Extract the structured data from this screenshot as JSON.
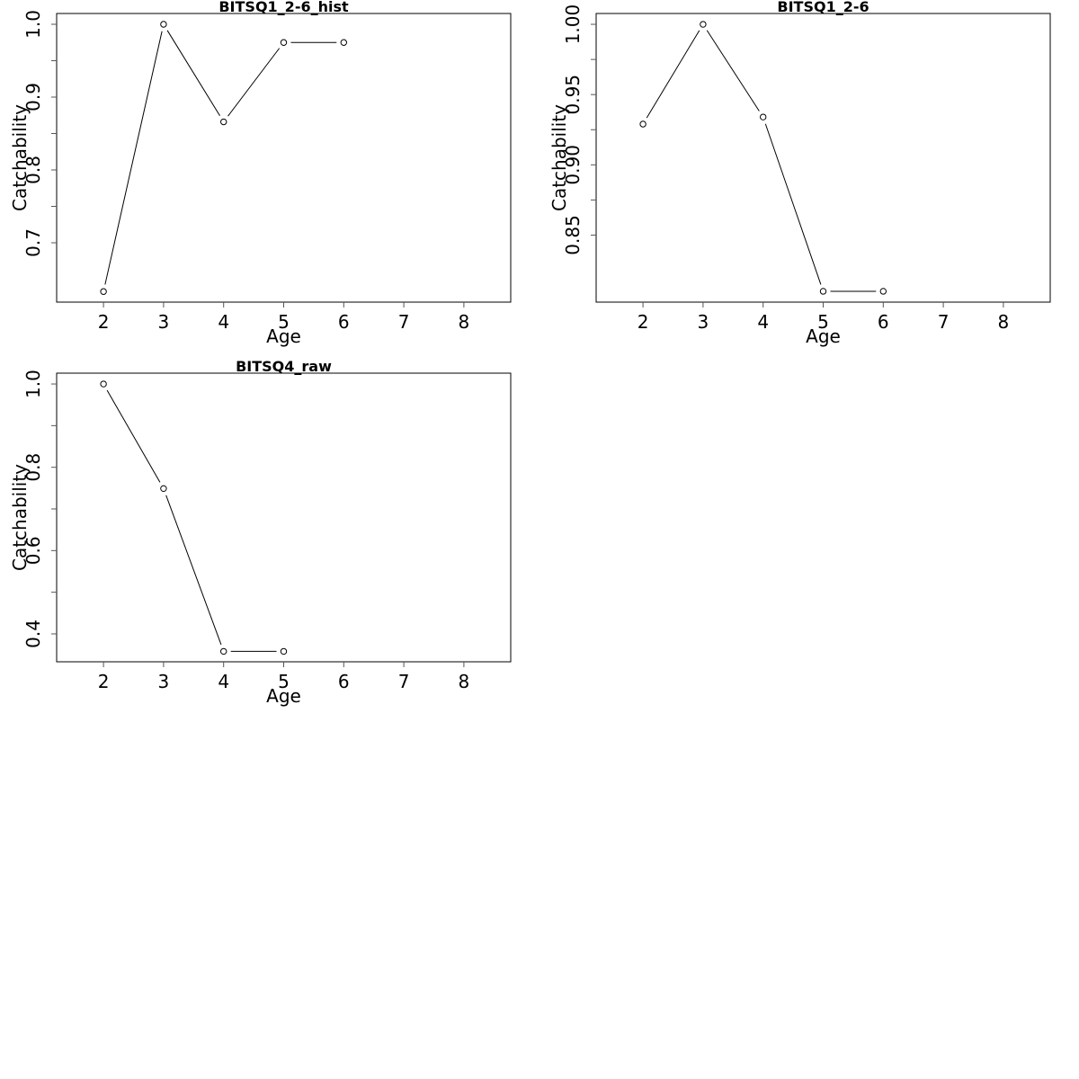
{
  "chart_data": [
    {
      "type": "line",
      "title": "BITSQ1_2-6_hist",
      "xlabel": "Age",
      "ylabel": "Catchability",
      "x_ticks": [
        2,
        3,
        4,
        5,
        6,
        7,
        8
      ],
      "y_ticks": [
        0.7,
        0.8,
        0.9,
        1.0
      ],
      "y_tick_labels": [
        "0.7",
        "0.8",
        "0.9",
        "1.0"
      ],
      "xlim": [
        1.22,
        8.78
      ],
      "ylim": [
        0.6185,
        1.0148
      ],
      "grid": false,
      "x": [
        2,
        3,
        4,
        5,
        6
      ],
      "values": [
        0.633,
        1.0,
        0.866,
        0.975,
        0.975
      ]
    },
    {
      "type": "line",
      "title": "BITSQ1_2-6",
      "xlabel": "Age",
      "ylabel": "Catchability",
      "x_ticks": [
        2,
        3,
        4,
        5,
        6,
        7,
        8
      ],
      "y_ticks": [
        0.85,
        0.9,
        0.95,
        1.0
      ],
      "y_tick_labels": [
        "0.85",
        "0.90",
        "0.95",
        "1.00"
      ],
      "xlim": [
        1.22,
        8.78
      ],
      "ylim": [
        0.8023,
        1.0077
      ],
      "grid": false,
      "x": [
        2,
        3,
        4,
        5,
        6
      ],
      "values": [
        0.929,
        1.0,
        0.934,
        0.81,
        0.81
      ]
    },
    {
      "type": "line",
      "title": "BITSQ4_raw",
      "xlabel": "Age",
      "ylabel": "Catchability",
      "x_ticks": [
        2,
        3,
        4,
        5,
        6,
        7,
        8
      ],
      "y_ticks": [
        0.4,
        0.6,
        0.8,
        1.0
      ],
      "y_tick_labels": [
        "0.4",
        "0.6",
        "0.8",
        "1.0"
      ],
      "xlim": [
        1.22,
        8.78
      ],
      "ylim": [
        0.333,
        1.026
      ],
      "grid": false,
      "x": [
        2,
        3,
        4,
        5
      ],
      "values": [
        1.0,
        0.749,
        0.358,
        0.358
      ]
    }
  ]
}
